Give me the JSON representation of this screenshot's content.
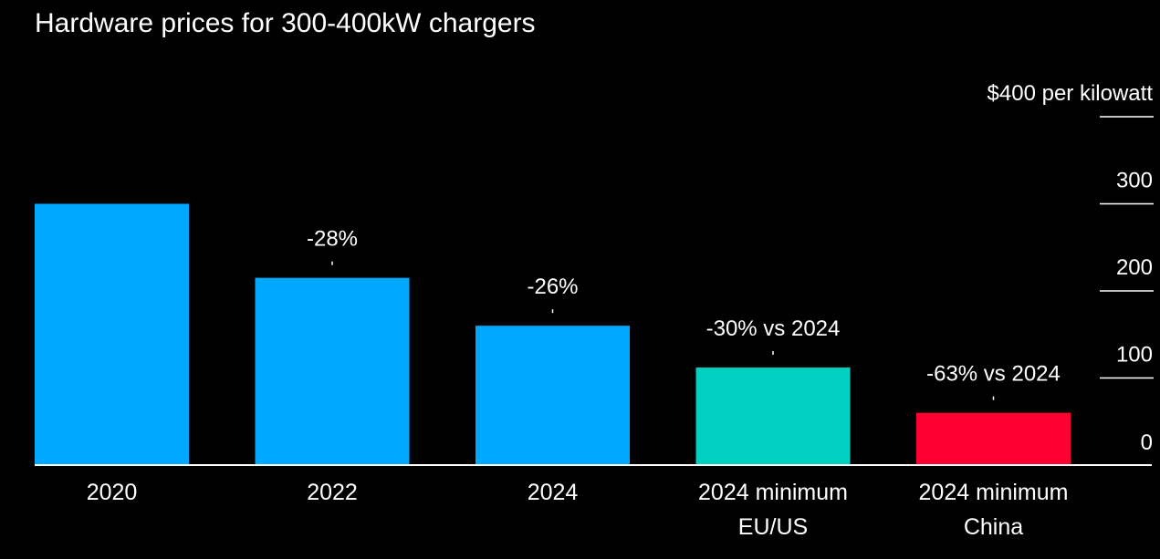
{
  "title": "Hardware prices for 300-400kW chargers",
  "chart_data": {
    "type": "bar",
    "title": "Hardware prices for 300-400kW chargers",
    "ylabel": "$400 per kilowatt",
    "ylim": [
      0,
      400
    ],
    "yticks": [
      {
        "value": 400,
        "label": "$400 per kilowatt"
      },
      {
        "value": 300,
        "label": "300"
      },
      {
        "value": 200,
        "label": "200"
      },
      {
        "value": 100,
        "label": "100"
      },
      {
        "value": 0,
        "label": "0"
      }
    ],
    "categories": [
      [
        "2020"
      ],
      [
        "2022"
      ],
      [
        "2024"
      ],
      [
        "2024 minimum",
        "EU/US"
      ],
      [
        "2024 minimum",
        "China"
      ]
    ],
    "values": [
      300,
      215,
      160,
      112,
      60
    ],
    "annotations": [
      "",
      "-28%",
      "-26%",
      "-30% vs 2024",
      "-63% vs 2024"
    ],
    "colors": [
      "#00a8ff",
      "#00a8ff",
      "#00a8ff",
      "#00d0c0",
      "#ff0033"
    ],
    "grid": false,
    "legend": "none"
  }
}
